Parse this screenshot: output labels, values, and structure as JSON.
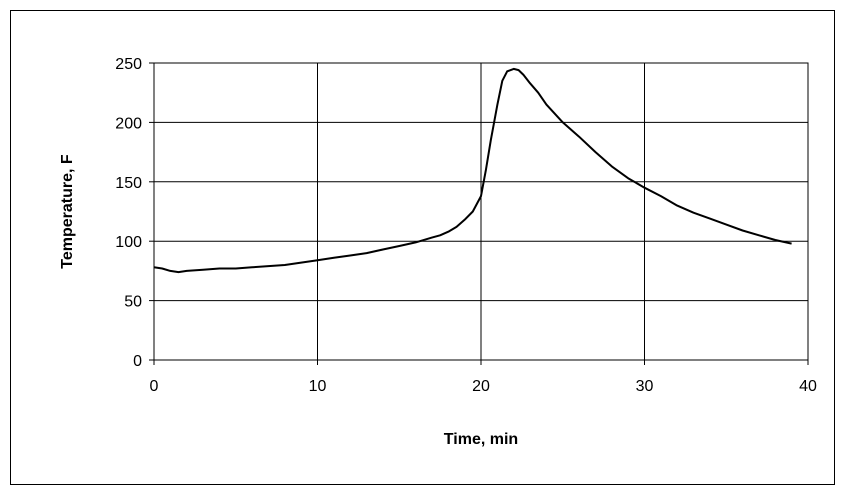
{
  "chart_data": {
    "type": "line",
    "title": "",
    "xlabel": "Time, min",
    "ylabel": "Temperature, F",
    "xlim": [
      0,
      40
    ],
    "ylim": [
      0,
      250
    ],
    "x_ticks": [
      0,
      10,
      20,
      30,
      40
    ],
    "y_ticks": [
      0,
      50,
      100,
      150,
      200,
      250
    ],
    "x_tick_labels": [
      "0",
      "10",
      "20",
      "30",
      "40"
    ],
    "y_tick_labels": [
      "0",
      "50",
      "100",
      "150",
      "200",
      "250"
    ],
    "grid": true,
    "legend": "none",
    "line_color": "#000000",
    "series": [
      {
        "x": [
          0,
          0.5,
          1,
          1.5,
          2,
          3,
          4,
          5,
          6,
          7,
          8,
          9,
          10,
          11,
          12,
          13,
          14,
          15,
          16,
          17,
          17.5,
          18,
          18.5,
          19,
          19.5,
          20,
          20.3,
          20.6,
          21,
          21.3,
          21.6,
          22,
          22.3,
          22.6,
          23,
          23.5,
          24,
          25,
          26,
          27,
          28,
          29,
          30,
          31,
          32,
          33,
          34,
          35,
          36,
          37,
          38,
          39
        ],
        "y": [
          78,
          77,
          75,
          74,
          75,
          76,
          77,
          77,
          78,
          79,
          80,
          82,
          84,
          86,
          88,
          90,
          93,
          96,
          99,
          103,
          105,
          108,
          112,
          118,
          125,
          138,
          160,
          185,
          215,
          235,
          243,
          245,
          244,
          240,
          233,
          225,
          215,
          200,
          188,
          175,
          163,
          153,
          145,
          138,
          130,
          124,
          119,
          114,
          109,
          105,
          101,
          98
        ]
      }
    ]
  }
}
